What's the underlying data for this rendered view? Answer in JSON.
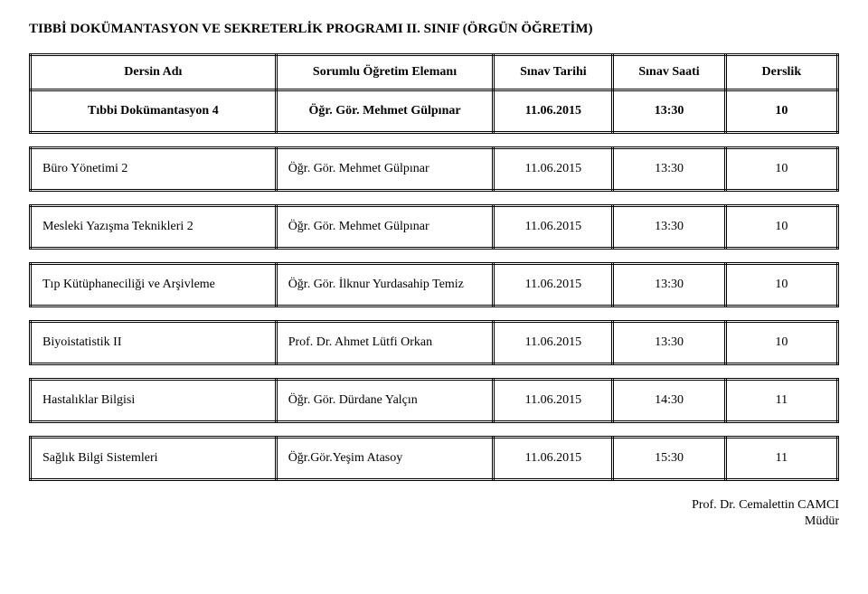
{
  "title": "TIBBİ DOKÜMANTASYON VE SEKRETERLİK PROGRAMI II. SINIF (ÖRGÜN ÖĞRETİM)",
  "columns": {
    "course": "Dersin Adı",
    "lecturer": "Sorumlu Öğretim Elemanı",
    "date": "Sınav Tarihi",
    "time": "Sınav Saati",
    "room": "Derslik"
  },
  "rows": [
    {
      "course": "Tıbbi Dokümantasyon 4",
      "lecturer": "Öğr. Gör. Mehmet Gülpınar",
      "date": "11.06.2015",
      "time": "13:30",
      "room": "10"
    },
    {
      "course": "Büro Yönetimi 2",
      "lecturer": "Öğr. Gör. Mehmet Gülpınar",
      "date": "11.06.2015",
      "time": "13:30",
      "room": "10"
    },
    {
      "course": "Mesleki Yazışma Teknikleri 2",
      "lecturer": "Öğr. Gör. Mehmet Gülpınar",
      "date": "11.06.2015",
      "time": "13:30",
      "room": "10"
    },
    {
      "course": "Tıp Kütüphaneciliği ve Arşivleme",
      "lecturer": "Öğr. Gör. İlknur Yurdasahip Temiz",
      "date": "11.06.2015",
      "time": "13:30",
      "room": "10"
    },
    {
      "course": "Biyoistatistik II",
      "lecturer": "Prof. Dr. Ahmet Lütfi Orkan",
      "date": "11.06.2015",
      "time": "13:30",
      "room": "10"
    },
    {
      "course": "Hastalıklar Bilgisi",
      "lecturer": "Öğr. Gör. Dürdane Yalçın",
      "date": "11.06.2015",
      "time": "14:30",
      "room": "11"
    },
    {
      "course": "Sağlık Bilgi Sistemleri",
      "lecturer": "Öğr.Gör.Yeşim Atasoy",
      "date": "11.06.2015",
      "time": "15:30",
      "room": "11"
    }
  ],
  "footer": {
    "line1": "Prof. Dr. Cemalettin CAMCI",
    "line2": "Müdür"
  }
}
